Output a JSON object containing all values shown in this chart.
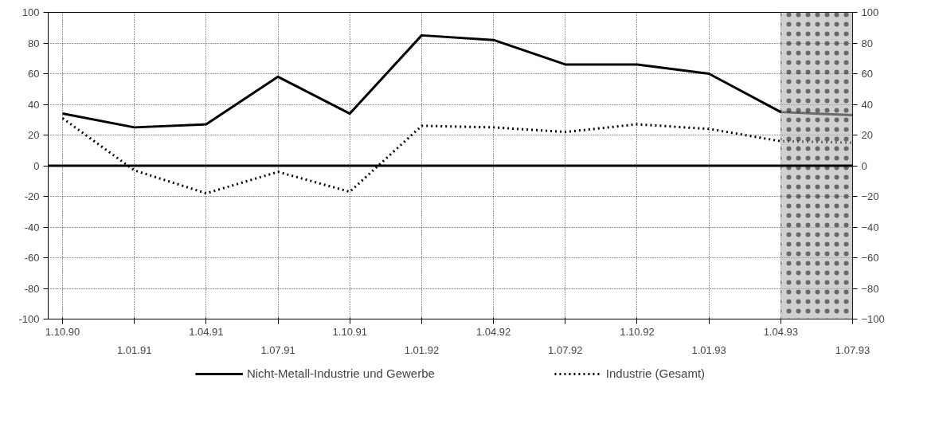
{
  "chart_data": {
    "type": "line",
    "categories": [
      "1.10.90",
      "1.01.91",
      "1.04.91",
      "1.07.91",
      "1.10.91",
      "1.01.92",
      "1.04.92",
      "1.07.92",
      "1.10.92",
      "1.01.93",
      "1.04.93",
      "1.07.93"
    ],
    "series": [
      {
        "name": "Nicht-Metall-Industrie und Gewerbe",
        "color": "#000000",
        "line_style": "solid",
        "values": [
          34,
          25,
          27,
          58,
          34,
          85,
          82,
          66,
          66,
          60,
          35,
          33
        ]
      },
      {
        "name": "Industrie (Gesamt)",
        "color": "#000000",
        "line_style": "dotted",
        "values": [
          31,
          -3,
          -18,
          -4,
          -17,
          26,
          25,
          22,
          27,
          24,
          16,
          15
        ]
      }
    ],
    "ylim": [
      -100,
      100
    ],
    "yticks": [
      -100,
      -80,
      -60,
      -40,
      -20,
      0,
      20,
      40,
      60,
      80,
      100
    ],
    "y2lim": [
      -100,
      100
    ],
    "y2ticks": [
      -100,
      -80,
      -60,
      -40,
      -20,
      0,
      20,
      40,
      60,
      80,
      100
    ],
    "ref_lines": [
      {
        "axis": "y",
        "value": 0,
        "label": null,
        "color": "#000000"
      }
    ],
    "bands": [
      {
        "axis": "x",
        "from": "1.04.93",
        "to": "1.07.93",
        "label": null,
        "color": "#b0b0b0"
      }
    ],
    "grid": true,
    "legend": "bottom",
    "marker": "none"
  }
}
